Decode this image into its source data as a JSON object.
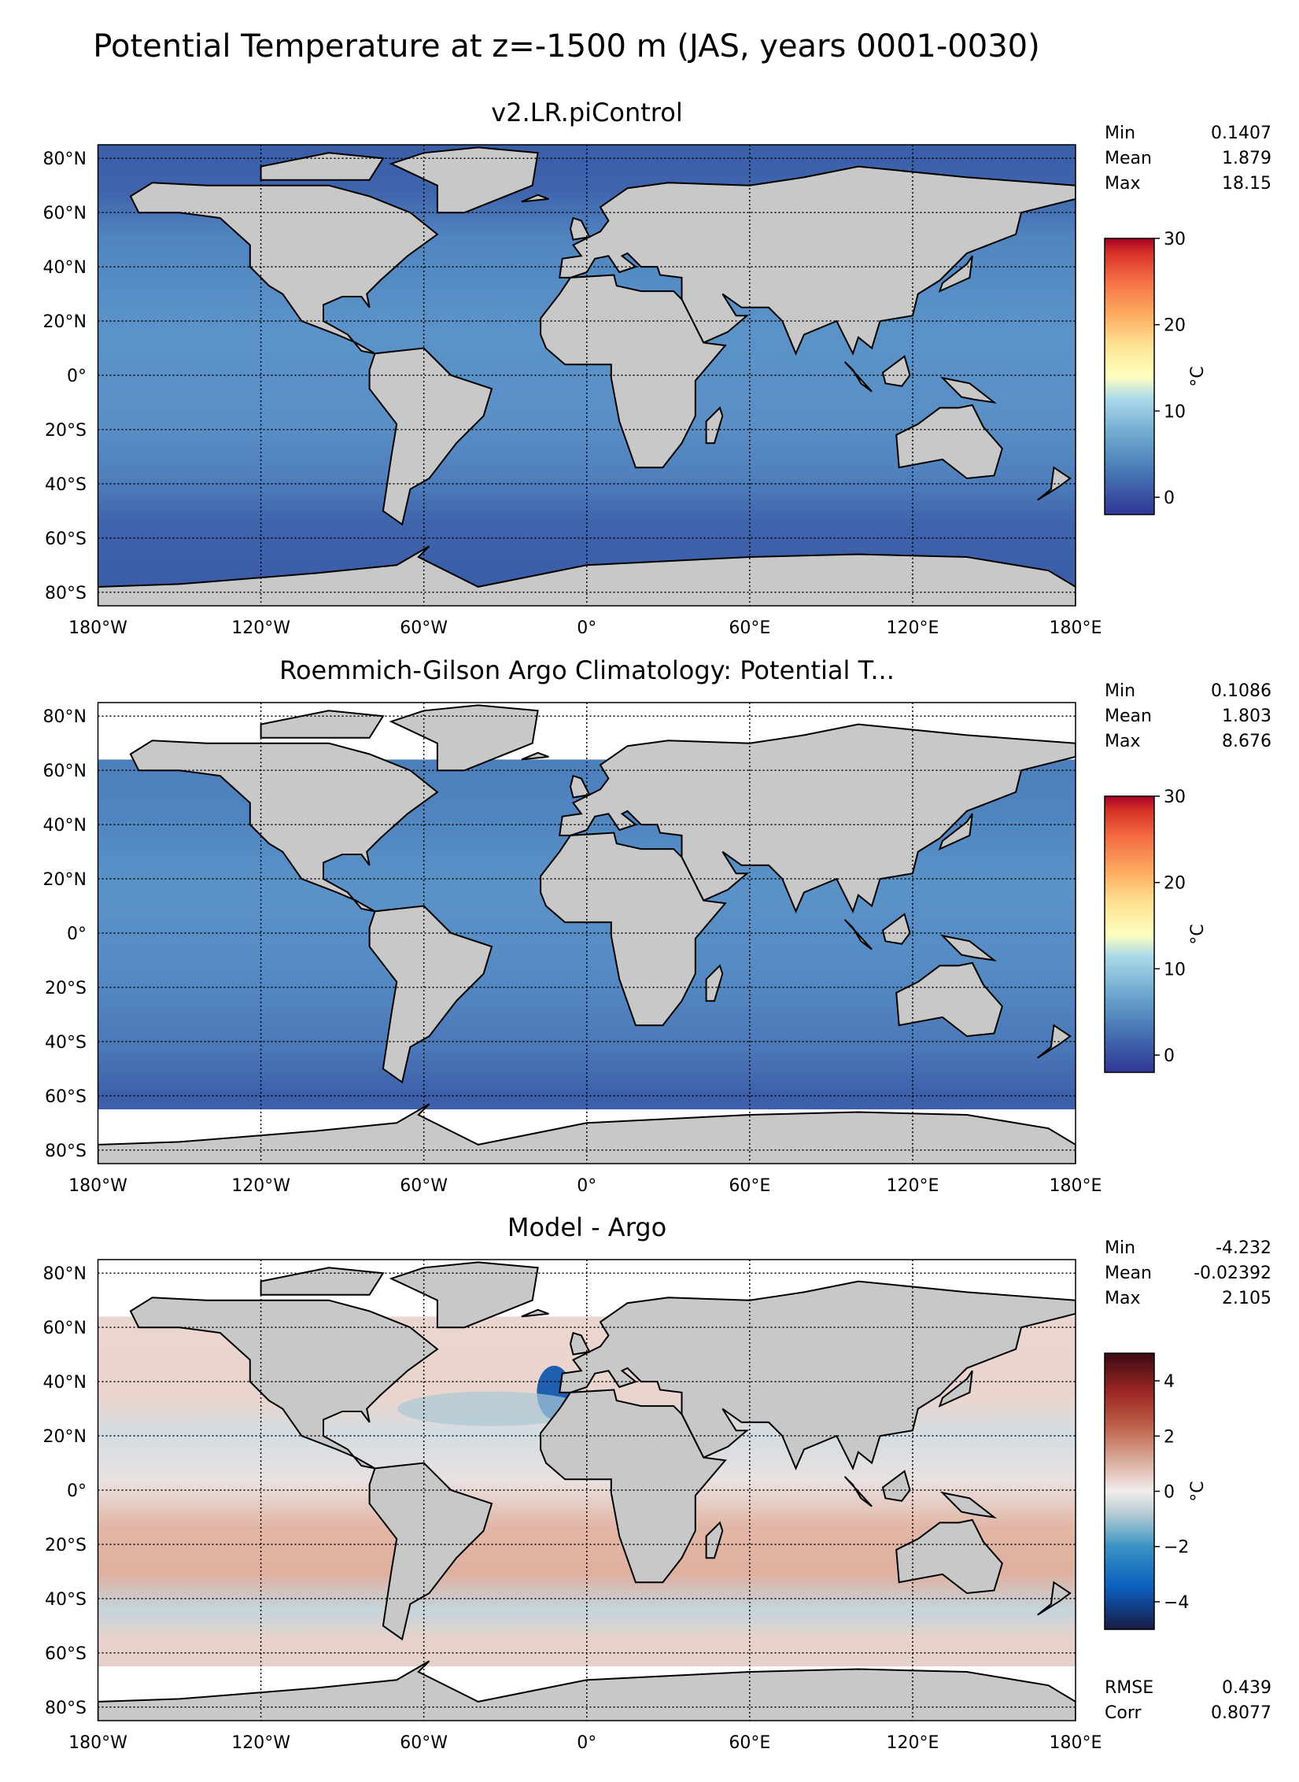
{
  "chart_data": {
    "type": "heatmap",
    "title": "Potential Temperature at z=-1500 m (JAS, years 0001-0030)",
    "x_ticks": [
      "180°W",
      "120°W",
      "60°W",
      "0°",
      "60°E",
      "120°E",
      "180°E"
    ],
    "x_tick_values": [
      -180,
      -120,
      -60,
      0,
      60,
      120,
      180
    ],
    "y_ticks": [
      "80°N",
      "60°N",
      "40°N",
      "20°N",
      "0°",
      "20°S",
      "40°S",
      "60°S",
      "80°S"
    ],
    "y_tick_values": [
      80,
      60,
      40,
      20,
      0,
      -20,
      -40,
      -60,
      -80
    ],
    "xlim": [
      -180,
      180
    ],
    "ylim": [
      -85,
      85
    ],
    "grid": true,
    "panels": [
      {
        "title": "v2.LR.piControl",
        "stats": [
          {
            "label": "Min",
            "value": "0.1407"
          },
          {
            "label": "Mean",
            "value": "1.879"
          },
          {
            "label": "Max",
            "value": "18.15"
          }
        ],
        "colorbar": {
          "label": "°C",
          "ticks": [
            "0",
            "10",
            "20",
            "30"
          ],
          "tick_values": [
            0,
            10,
            20,
            30
          ],
          "range": [
            -2,
            30
          ],
          "colormap": "RdYlBu_r"
        }
      },
      {
        "title": "Roemmich-Gilson Argo Climatology: Potential T...",
        "stats": [
          {
            "label": "Min",
            "value": "0.1086"
          },
          {
            "label": "Mean",
            "value": "1.803"
          },
          {
            "label": "Max",
            "value": "8.676"
          }
        ],
        "colorbar": {
          "label": "°C",
          "ticks": [
            "0",
            "10",
            "20",
            "30"
          ],
          "tick_values": [
            0,
            10,
            20,
            30
          ],
          "range": [
            -2,
            30
          ],
          "colormap": "RdYlBu_r"
        }
      },
      {
        "title": "Model - Argo",
        "stats": [
          {
            "label": "Min",
            "value": "-4.232"
          },
          {
            "label": "Mean",
            "value": "-0.02392"
          },
          {
            "label": "Max",
            "value": "2.105"
          }
        ],
        "extra_stats": [
          {
            "label": "RMSE",
            "value": "0.439"
          },
          {
            "label": "Corr",
            "value": "0.8077"
          }
        ],
        "colorbar": {
          "label": "°C",
          "ticks": [
            "4",
            "2",
            "0",
            "−2",
            "−4"
          ],
          "tick_values": [
            4,
            2,
            0,
            -2,
            -4
          ],
          "range": [
            -5,
            5
          ],
          "colormap": "balance"
        }
      }
    ]
  }
}
